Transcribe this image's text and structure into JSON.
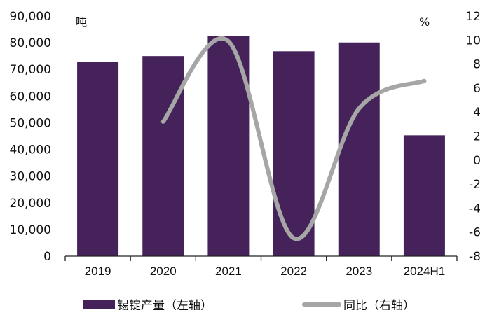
{
  "chart_data": {
    "type": "bar+line",
    "categories": [
      "2019",
      "2020",
      "2021",
      "2022",
      "2023",
      "2024H1"
    ],
    "series": [
      {
        "name": "锡锭产量（左轴）",
        "type": "bar",
        "axis": "left",
        "values": [
          72700,
          75000,
          82400,
          76800,
          80100,
          45300
        ],
        "color": "#45235a"
      },
      {
        "name": "同比（右轴）",
        "type": "line",
        "axis": "right",
        "values": [
          null,
          3.2,
          9.9,
          -6.5,
          4.3,
          6.6
        ],
        "color": "#a6a6a6"
      }
    ],
    "y_left": {
      "unit": "吨",
      "range": [
        0,
        90000
      ],
      "ticks": [
        "0",
        "10,000",
        "20,000",
        "30,000",
        "40,000",
        "50,000",
        "60,000",
        "70,000",
        "80,000",
        "90,000"
      ]
    },
    "y_right": {
      "unit": "%",
      "range": [
        -8,
        12
      ],
      "ticks": [
        "-8",
        "-6",
        "-4",
        "-2",
        "0",
        "2",
        "4",
        "6",
        "8",
        "10",
        "12"
      ]
    },
    "grid": false,
    "legend": "bottom"
  }
}
